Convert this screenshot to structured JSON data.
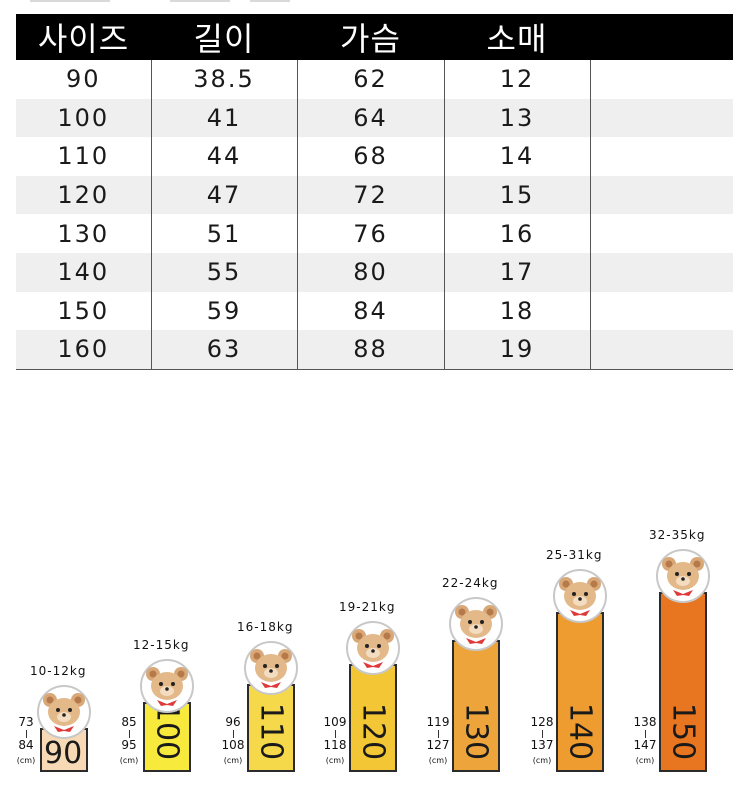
{
  "size_table": {
    "headers": [
      "사이즈",
      "길이",
      "가슴",
      "소매",
      ""
    ],
    "rows": [
      [
        "90",
        "38.5",
        "62",
        "12",
        ""
      ],
      [
        "100",
        "41",
        "64",
        "13",
        ""
      ],
      [
        "110",
        "44",
        "68",
        "14",
        ""
      ],
      [
        "120",
        "47",
        "72",
        "15",
        ""
      ],
      [
        "130",
        "51",
        "76",
        "16",
        ""
      ],
      [
        "140",
        "55",
        "80",
        "17",
        ""
      ],
      [
        "150",
        "59",
        "84",
        "18",
        ""
      ],
      [
        "160",
        "63",
        "88",
        "19",
        ""
      ]
    ]
  },
  "chart_data": {
    "type": "bar",
    "categories": [
      "90",
      "100",
      "110",
      "120",
      "130",
      "140",
      "150"
    ],
    "weights": [
      "10-12kg",
      "12-15kg",
      "16-18kg",
      "19-21kg",
      "22-24kg",
      "25-31kg",
      "32-35kg"
    ],
    "height_ranges": [
      {
        "from": "73",
        "to": "84"
      },
      {
        "from": "85",
        "to": "95"
      },
      {
        "from": "96",
        "to": "108"
      },
      {
        "from": "109",
        "to": "118"
      },
      {
        "from": "119",
        "to": "127"
      },
      {
        "from": "128",
        "to": "137"
      },
      {
        "from": "138",
        "to": "147"
      }
    ],
    "unit": "(cm)",
    "colors": [
      "#f7d9b5",
      "#f8ea3c",
      "#f5d94a",
      "#f2c634",
      "#eda53b",
      "#ee9b2f",
      "#e87520"
    ],
    "icon": "bear-icon"
  }
}
